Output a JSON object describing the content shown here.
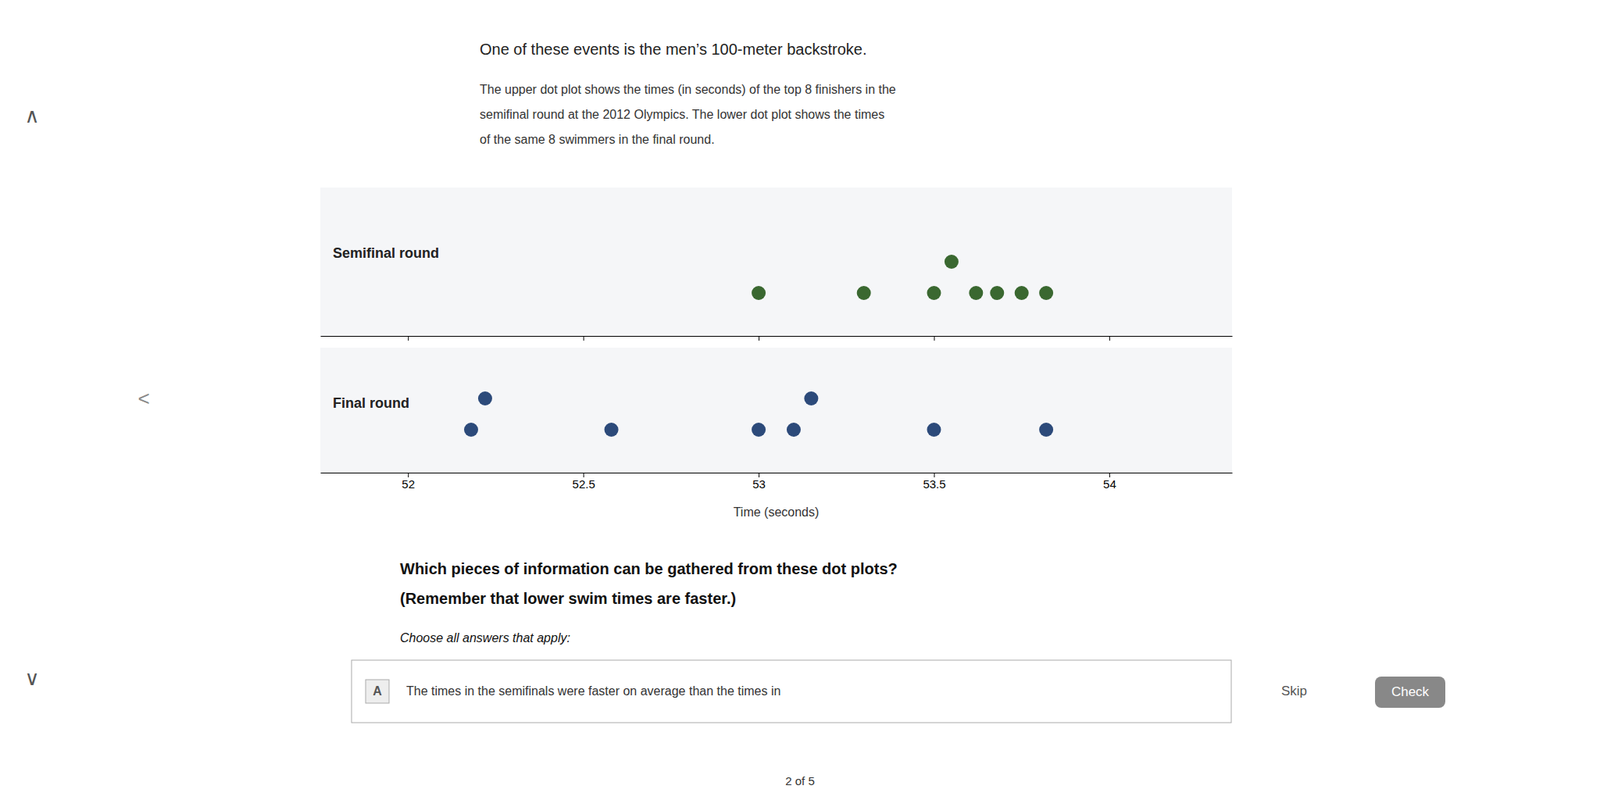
{
  "chart_data": [
    {
      "type": "dot",
      "title": "Semifinal round",
      "values": [
        53.0,
        53.3,
        53.5,
        53.55,
        53.62,
        53.68,
        53.75,
        53.82
      ],
      "color": "#3a6830",
      "xlim": [
        51.75,
        54.35
      ],
      "xticks": [
        52,
        52.5,
        53,
        53.5,
        54
      ],
      "tick_labels": false
    },
    {
      "type": "dot",
      "title": "Final round",
      "values": [
        52.18,
        52.22,
        52.58,
        53.0,
        53.1,
        53.15,
        53.5,
        53.82
      ],
      "color": "#2c4a7a",
      "xlabel": "Time (seconds)",
      "xlim": [
        51.75,
        54.35
      ],
      "xticks": [
        52,
        52.5,
        53,
        53.5,
        54
      ]
    }
  ],
  "page": {
    "heading": "One of these events is the men’s 100-meter backstroke.",
    "paragraphs": [
      "The upper dot plot shows the times (in seconds) of the top 8 finishers in the",
      "semifinal round at the 2012 Olympics. The lower dot plot shows the times",
      "of the same 8 swimmers in the final round."
    ],
    "question": [
      "Which pieces of information can be gathered from these dot plots?",
      "(Remember that lower swim times are faster.)"
    ],
    "instruction": "Choose all answers that apply:",
    "answer": {
      "letter": "A",
      "text": "The times in the semifinals were faster on average than the times in"
    },
    "skip": "Skip",
    "check": "Check",
    "progress": "2 of 5",
    "nav": [
      "∧",
      "∨",
      "<"
    ]
  }
}
